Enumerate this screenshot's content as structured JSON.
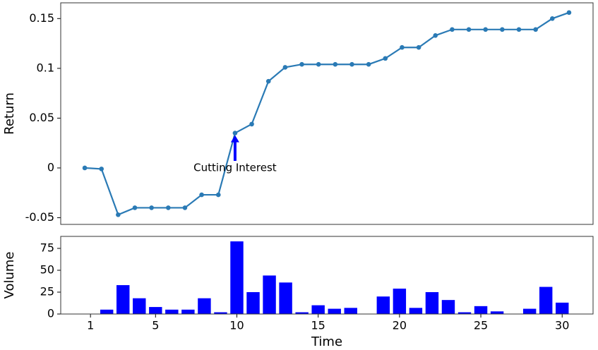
{
  "chart_data": [
    {
      "type": "line",
      "y_label": "Return",
      "color": "#2a7ab5",
      "x": [
        1,
        2,
        3,
        4,
        5,
        6,
        7,
        8,
        9,
        10,
        11,
        12,
        13,
        14,
        15,
        16,
        17,
        18,
        19,
        20,
        21,
        22,
        23,
        24,
        25,
        26,
        27,
        28,
        29,
        30
      ],
      "values": [
        0,
        -0.001,
        -0.047,
        -0.04,
        -0.04,
        -0.04,
        -0.04,
        -0.027,
        -0.027,
        0.035,
        0.044,
        0.087,
        0.101,
        0.104,
        0.104,
        0.104,
        0.104,
        0.104,
        0.11,
        0.121,
        0.121,
        0.133,
        0.139,
        0.139,
        0.139,
        0.139,
        0.139,
        0.139,
        0.15,
        0.156
      ],
      "xlim": [
        -0.44,
        31.44
      ],
      "ylim": [
        -0.0567,
        0.1658
      ],
      "yticks": [
        0.15,
        0.1,
        0.05,
        0,
        -0.05
      ],
      "annotation": {
        "text": "Cutting Interest",
        "x": 10,
        "y": 0.035,
        "text_x": 10,
        "text_y": 0,
        "color": "#0000ff"
      }
    },
    {
      "type": "bar",
      "x_label": "Time",
      "y_label": "Volume",
      "color": "#0000ff",
      "x": [
        1,
        2,
        3,
        4,
        5,
        6,
        7,
        8,
        9,
        10,
        11,
        12,
        13,
        14,
        15,
        16,
        17,
        18,
        19,
        20,
        21,
        22,
        23,
        24,
        25,
        26,
        27,
        28,
        29,
        30
      ],
      "values": [
        0,
        5,
        33,
        18,
        8,
        5,
        5,
        18,
        2,
        83,
        25,
        44,
        36,
        2,
        10,
        6,
        7,
        0,
        20,
        29,
        7,
        25,
        16,
        2,
        9,
        3,
        0,
        6,
        31,
        13
      ],
      "xlim": [
        -0.83,
        31.9
      ],
      "ylim": [
        0,
        88.7
      ],
      "yticks": [
        0,
        25,
        50,
        75
      ],
      "xticks": [
        1,
        5,
        10,
        15,
        20,
        25,
        30
      ]
    }
  ]
}
